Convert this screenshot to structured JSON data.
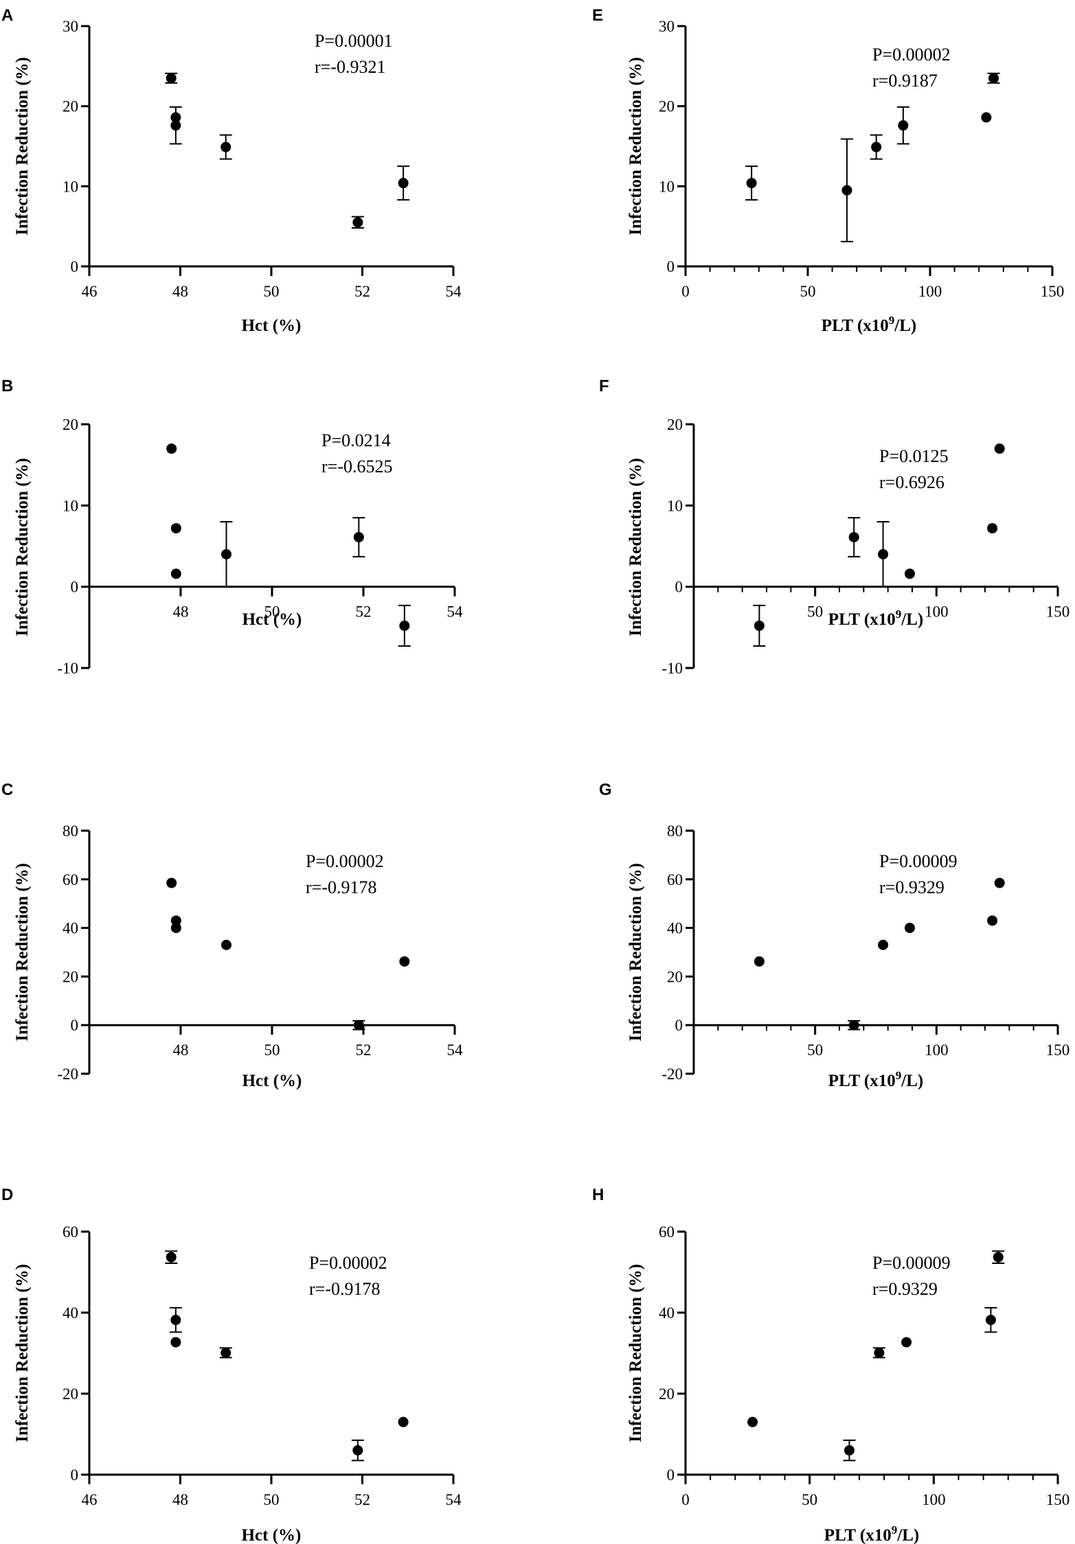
{
  "chart_data": [
    {
      "id": "A",
      "panel_label": "A",
      "type": "scatter",
      "xlabel": "Hct (%)",
      "ylabel": "Infection Reduction (%)",
      "xlim": [
        46,
        54
      ],
      "ylim": [
        0,
        30
      ],
      "xticks": [
        46,
        48,
        50,
        52,
        54
      ],
      "yticks": [
        0,
        10,
        20,
        30
      ],
      "xtick_labels": [
        "46",
        "48",
        "50",
        "52",
        "54"
      ],
      "ytick_labels": [
        "0",
        "10",
        "20",
        "30"
      ],
      "p_text": "P=0.00001",
      "r_text": "r=-0.9321",
      "points": [
        {
          "x": 47.8,
          "y": 23.5,
          "err": 0.6
        },
        {
          "x": 47.9,
          "y": 18.6,
          "err": 0
        },
        {
          "x": 47.9,
          "y": 17.6,
          "err": 2.3
        },
        {
          "x": 49.0,
          "y": 14.9,
          "err": 1.5
        },
        {
          "x": 51.9,
          "y": 5.5,
          "err": 0.7
        },
        {
          "x": 52.9,
          "y": 10.4,
          "err": 2.1
        }
      ]
    },
    {
      "id": "B",
      "panel_label": "B",
      "type": "scatter",
      "xlabel": "Hct (%)",
      "ylabel": "Infection Reduction (%)",
      "xlim": [
        46,
        54
      ],
      "ylim": [
        -10,
        20
      ],
      "xticks": [
        48,
        50,
        52,
        54
      ],
      "yticks": [
        -10,
        0,
        10,
        20
      ],
      "xtick_labels": [
        "48",
        "50",
        "52",
        "54"
      ],
      "ytick_labels": [
        "-10",
        "0",
        "10",
        "20"
      ],
      "p_text": "P=0.0214",
      "r_text": "r=-0.6525",
      "points": [
        {
          "x": 47.8,
          "y": 17.0,
          "err": 0
        },
        {
          "x": 47.9,
          "y": 7.2,
          "err": 0
        },
        {
          "x": 47.9,
          "y": 1.6,
          "err": 0
        },
        {
          "x": 49.0,
          "y": 4.0,
          "err": 4.0
        },
        {
          "x": 51.9,
          "y": 6.1,
          "err": 2.4
        },
        {
          "x": 52.9,
          "y": -4.8,
          "err": 2.5
        }
      ]
    },
    {
      "id": "C",
      "panel_label": "C",
      "type": "scatter",
      "xlabel": "Hct (%)",
      "ylabel": "Infection Reduction (%)",
      "xlim": [
        46,
        54
      ],
      "ylim": [
        -20,
        80
      ],
      "xticks": [
        48,
        50,
        52,
        54
      ],
      "yticks": [
        -20,
        0,
        20,
        40,
        60,
        80
      ],
      "xtick_labels": [
        "48",
        "50",
        "52",
        "54"
      ],
      "ytick_labels": [
        "-20",
        "0",
        "20",
        "40",
        "60",
        "80"
      ],
      "p_text": "P=0.00002",
      "r_text": "r=-0.9178",
      "points": [
        {
          "x": 47.8,
          "y": 58.5,
          "err": 0
        },
        {
          "x": 47.9,
          "y": 43.0,
          "err": 0
        },
        {
          "x": 47.9,
          "y": 40.0,
          "err": 0
        },
        {
          "x": 49.0,
          "y": 33.0,
          "err": 0
        },
        {
          "x": 51.9,
          "y": 0.0,
          "err": 1.8
        },
        {
          "x": 52.9,
          "y": 26.2,
          "err": 0
        }
      ]
    },
    {
      "id": "D",
      "panel_label": "D",
      "type": "scatter",
      "xlabel": "Hct (%)",
      "ylabel": "Infection Reduction (%)",
      "xlim": [
        46,
        54
      ],
      "ylim": [
        0,
        60
      ],
      "xticks": [
        46,
        48,
        50,
        52,
        54
      ],
      "yticks": [
        0,
        20,
        40,
        60
      ],
      "xtick_labels": [
        "46",
        "48",
        "50",
        "52",
        "54"
      ],
      "ytick_labels": [
        "0",
        "20",
        "40",
        "60"
      ],
      "p_text": "P=0.00002",
      "r_text": "r=-0.9178",
      "points": [
        {
          "x": 47.8,
          "y": 53.7,
          "err": 1.5
        },
        {
          "x": 47.9,
          "y": 38.2,
          "err": 3.0
        },
        {
          "x": 47.9,
          "y": 32.7,
          "err": 0
        },
        {
          "x": 49.0,
          "y": 30.1,
          "err": 1.2
        },
        {
          "x": 51.9,
          "y": 6.0,
          "err": 2.5
        },
        {
          "x": 52.9,
          "y": 13.0,
          "err": 0
        }
      ]
    },
    {
      "id": "E",
      "panel_label": "E",
      "type": "scatter",
      "xlabel": "PLT (x10",
      "xlabel_sup": "9",
      "xlabel_tail": "/L)",
      "ylabel": "Infection Reduction (%)",
      "xlim": [
        0,
        150
      ],
      "ylim": [
        0,
        30
      ],
      "xticks": [
        0,
        50,
        100,
        150
      ],
      "yticks": [
        0,
        10,
        20,
        30
      ],
      "xtick_labels": [
        "0",
        "50",
        "100",
        "150"
      ],
      "ytick_labels": [
        "0",
        "10",
        "20",
        "30"
      ],
      "p_text": "P=0.00002",
      "r_text": "r=0.9187",
      "points": [
        {
          "x": 27,
          "y": 10.4,
          "err": 2.1
        },
        {
          "x": 66,
          "y": 9.5,
          "err": 6.4
        },
        {
          "x": 78,
          "y": 14.9,
          "err": 1.5
        },
        {
          "x": 89,
          "y": 17.6,
          "err": 2.3
        },
        {
          "x": 123,
          "y": 18.6,
          "err": 0
        },
        {
          "x": 126,
          "y": 23.5,
          "err": 0.6
        }
      ]
    },
    {
      "id": "F",
      "panel_label": "F",
      "type": "scatter",
      "xlabel": "PLT (x10",
      "xlabel_sup": "9",
      "xlabel_tail": "/L)",
      "ylabel": "Infection Reduction (%)",
      "xlim": [
        0,
        150
      ],
      "ylim": [
        -10,
        20
      ],
      "xticks": [
        50,
        100,
        150
      ],
      "yticks": [
        -10,
        0,
        10,
        20
      ],
      "xtick_labels": [
        "50",
        "100",
        "150"
      ],
      "ytick_labels": [
        "-10",
        "0",
        "10",
        "20"
      ],
      "p_text": "P=0.0125",
      "r_text": "r=0.6926",
      "points": [
        {
          "x": 27,
          "y": -4.8,
          "err": 2.5
        },
        {
          "x": 66,
          "y": 6.1,
          "err": 2.4
        },
        {
          "x": 78,
          "y": 4.0,
          "err": 4.0
        },
        {
          "x": 89,
          "y": 1.6,
          "err": 0
        },
        {
          "x": 123,
          "y": 7.2,
          "err": 0
        },
        {
          "x": 126,
          "y": 17.0,
          "err": 0
        }
      ]
    },
    {
      "id": "G",
      "panel_label": "G",
      "type": "scatter",
      "xlabel": "PLT (x10",
      "xlabel_sup": "9",
      "xlabel_tail": "/L)",
      "ylabel": "Infection Reduction (%)",
      "xlim": [
        0,
        150
      ],
      "ylim": [
        -20,
        80
      ],
      "xticks": [
        50,
        100,
        150
      ],
      "yticks": [
        -20,
        0,
        20,
        40,
        60,
        80
      ],
      "xtick_labels": [
        "50",
        "100",
        "150"
      ],
      "ytick_labels": [
        "-20",
        "0",
        "20",
        "40",
        "60",
        "80"
      ],
      "p_text": "P=0.00009",
      "r_text": "r=0.9329",
      "points": [
        {
          "x": 27,
          "y": 26.2,
          "err": 0
        },
        {
          "x": 66,
          "y": 0.0,
          "err": 1.8
        },
        {
          "x": 78,
          "y": 33.0,
          "err": 0
        },
        {
          "x": 89,
          "y": 40.0,
          "err": 0
        },
        {
          "x": 123,
          "y": 43.0,
          "err": 0
        },
        {
          "x": 126,
          "y": 58.5,
          "err": 0
        }
      ]
    },
    {
      "id": "H",
      "panel_label": "H",
      "type": "scatter",
      "xlabel": "PLT (x10",
      "xlabel_sup": "9",
      "xlabel_tail": "/L)",
      "ylabel": "Infection Reduction (%)",
      "xlim": [
        0,
        150
      ],
      "ylim": [
        0,
        60
      ],
      "xticks": [
        0,
        50,
        100,
        150
      ],
      "yticks": [
        0,
        20,
        40,
        60
      ],
      "xtick_labels": [
        "0",
        "50",
        "100",
        "150"
      ],
      "ytick_labels": [
        "0",
        "20",
        "40",
        "60"
      ],
      "p_text": "P=0.00009",
      "r_text": "r=0.9329",
      "points": [
        {
          "x": 27,
          "y": 13.0,
          "err": 0
        },
        {
          "x": 66,
          "y": 6.0,
          "err": 2.5
        },
        {
          "x": 78,
          "y": 30.1,
          "err": 1.2
        },
        {
          "x": 89,
          "y": 32.7,
          "err": 0
        },
        {
          "x": 123,
          "y": 38.2,
          "err": 3.0
        },
        {
          "x": 126,
          "y": 53.7,
          "err": 1.5
        }
      ]
    }
  ]
}
